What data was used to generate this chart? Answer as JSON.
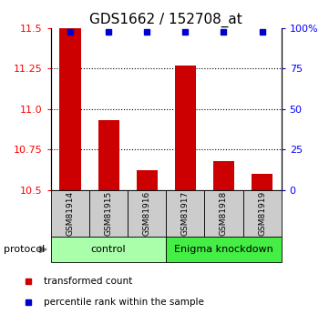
{
  "title": "GDS1662 / 152708_at",
  "samples": [
    "GSM81914",
    "GSM81915",
    "GSM81916",
    "GSM81917",
    "GSM81918",
    "GSM81919"
  ],
  "red_values": [
    11.5,
    10.93,
    10.62,
    11.27,
    10.68,
    10.6
  ],
  "blue_y_display": [
    11.48,
    11.48,
    11.48,
    11.48,
    11.48,
    11.48
  ],
  "ylim_left": [
    10.5,
    11.5
  ],
  "ylim_right": [
    0,
    100
  ],
  "left_ticks": [
    10.5,
    10.75,
    11.0,
    11.25,
    11.5
  ],
  "right_ticks": [
    0,
    25,
    50,
    75,
    100
  ],
  "right_tick_labels": [
    "0",
    "25",
    "50",
    "75",
    "100%"
  ],
  "groups": [
    {
      "label": "control",
      "start": 0,
      "end": 3,
      "color": "#aaffaa"
    },
    {
      "label": "Enigma knockdown",
      "start": 3,
      "end": 6,
      "color": "#44ee44"
    }
  ],
  "protocol_label": "protocol",
  "legend_items": [
    {
      "color": "#cc0000",
      "label": "transformed count"
    },
    {
      "color": "#0000cc",
      "label": "percentile rank within the sample"
    }
  ],
  "bar_color": "#cc0000",
  "dot_color": "#0000cc",
  "bar_width": 0.55,
  "sample_bg_color": "#cccccc",
  "title_fontsize": 11,
  "tick_fontsize": 8,
  "label_fontsize": 8
}
